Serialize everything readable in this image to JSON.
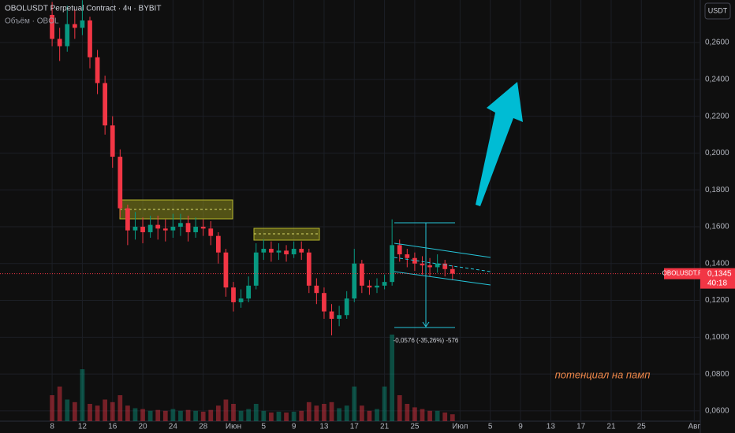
{
  "chart_data": {
    "type": "candlestick",
    "title": "OBOLUSDT Perpetual Contract · 4ч · BYBIT",
    "volume_label": "Объём · OBOL",
    "currency": "USDT",
    "measure_label": "-0,0576 (-35,26%) -576",
    "note": "потенциал на памп",
    "timer": "40:18",
    "last_price": {
      "value": 0.1345,
      "label": "0,1345"
    },
    "xlim": [
      -6.9,
      85.8
    ],
    "xticks": [
      {
        "value": 0,
        "label": "8"
      },
      {
        "value": 4,
        "label": "12"
      },
      {
        "value": 8,
        "label": "16"
      },
      {
        "value": 12,
        "label": "20"
      },
      {
        "value": 16,
        "label": "24"
      },
      {
        "value": 20,
        "label": "28"
      },
      {
        "value": 24,
        "label": "Июн"
      },
      {
        "value": 28,
        "label": "5"
      },
      {
        "value": 32,
        "label": "9"
      },
      {
        "value": 36,
        "label": "13"
      },
      {
        "value": 40,
        "label": "17"
      },
      {
        "value": 44,
        "label": "21"
      },
      {
        "value": 48,
        "label": "25"
      },
      {
        "value": 54,
        "label": "Июл"
      },
      {
        "value": 58,
        "label": "5"
      },
      {
        "value": 62,
        "label": "9"
      },
      {
        "value": 66,
        "label": "13"
      },
      {
        "value": 70,
        "label": "17"
      },
      {
        "value": 74,
        "label": "21"
      },
      {
        "value": 78,
        "label": "25"
      },
      {
        "value": 85,
        "label": "Авг"
      }
    ],
    "ylim": [
      0.0544,
      0.2831
    ],
    "yticks": [
      {
        "value": 0.06,
        "label": "0,0600"
      },
      {
        "value": 0.08,
        "label": "0,0800"
      },
      {
        "value": 0.1,
        "label": "0,1000"
      },
      {
        "value": 0.12,
        "label": "0,1200"
      },
      {
        "value": 0.14,
        "label": "0,1400"
      },
      {
        "value": 0.16,
        "label": "0,1600"
      },
      {
        "value": 0.18,
        "label": "0,1800"
      },
      {
        "value": 0.2,
        "label": "0,2000"
      },
      {
        "value": 0.22,
        "label": "0,2200"
      },
      {
        "value": 0.24,
        "label": "0,2400"
      },
      {
        "value": 0.26,
        "label": "0,2600"
      }
    ],
    "grid": true,
    "series": [
      {
        "name": "OBOLUSDT.P",
        "up_color": "#089981",
        "down_color": "#f23645",
        "x": [
          0,
          1,
          2,
          3,
          4,
          5,
          6,
          7,
          8,
          9,
          10,
          11,
          12,
          13,
          14,
          15,
          16,
          17,
          18,
          19,
          20,
          21,
          22,
          23,
          24,
          25,
          26,
          27,
          28,
          29,
          30,
          31,
          32,
          33,
          34,
          35,
          36,
          37,
          38,
          39,
          40,
          41,
          42,
          43,
          44,
          45,
          46,
          47,
          48,
          49,
          50,
          51,
          52,
          53
        ],
        "open": [
          0.275,
          0.262,
          0.258,
          0.27,
          0.268,
          0.272,
          0.252,
          0.238,
          0.215,
          0.198,
          0.17,
          0.158,
          0.16,
          0.157,
          0.161,
          0.159,
          0.158,
          0.16,
          0.162,
          0.157,
          0.16,
          0.159,
          0.155,
          0.146,
          0.127,
          0.119,
          0.121,
          0.128,
          0.146,
          0.148,
          0.146,
          0.147,
          0.145,
          0.148,
          0.146,
          0.128,
          0.124,
          0.114,
          0.11,
          0.112,
          0.121,
          0.14,
          0.128,
          0.127,
          0.128,
          0.13,
          0.15,
          0.145,
          0.143,
          0.14,
          0.139,
          0.138,
          0.14,
          0.137
        ],
        "high": [
          0.282,
          0.268,
          0.28,
          0.278,
          0.283,
          0.274,
          0.256,
          0.242,
          0.22,
          0.202,
          0.172,
          0.168,
          0.165,
          0.166,
          0.166,
          0.164,
          0.167,
          0.167,
          0.166,
          0.165,
          0.164,
          0.163,
          0.157,
          0.148,
          0.13,
          0.126,
          0.133,
          0.151,
          0.153,
          0.152,
          0.151,
          0.15,
          0.152,
          0.152,
          0.148,
          0.132,
          0.127,
          0.118,
          0.117,
          0.125,
          0.148,
          0.142,
          0.131,
          0.132,
          0.134,
          0.164,
          0.153,
          0.148,
          0.146,
          0.144,
          0.143,
          0.145,
          0.142,
          0.139
        ],
        "low": [
          0.258,
          0.25,
          0.255,
          0.262,
          0.264,
          0.246,
          0.232,
          0.21,
          0.192,
          0.165,
          0.15,
          0.153,
          0.151,
          0.154,
          0.153,
          0.152,
          0.154,
          0.155,
          0.152,
          0.154,
          0.155,
          0.15,
          0.14,
          0.122,
          0.114,
          0.116,
          0.119,
          0.126,
          0.142,
          0.141,
          0.142,
          0.141,
          0.143,
          0.142,
          0.124,
          0.118,
          0.11,
          0.101,
          0.106,
          0.11,
          0.119,
          0.124,
          0.123,
          0.124,
          0.126,
          0.128,
          0.141,
          0.138,
          0.136,
          0.134,
          0.133,
          0.135,
          0.133,
          0.131
        ],
        "close": [
          0.262,
          0.258,
          0.27,
          0.268,
          0.272,
          0.252,
          0.238,
          0.215,
          0.198,
          0.17,
          0.158,
          0.16,
          0.157,
          0.161,
          0.159,
          0.158,
          0.16,
          0.162,
          0.157,
          0.16,
          0.159,
          0.155,
          0.146,
          0.127,
          0.119,
          0.121,
          0.128,
          0.146,
          0.148,
          0.146,
          0.147,
          0.145,
          0.148,
          0.146,
          0.128,
          0.124,
          0.114,
          0.11,
          0.112,
          0.121,
          0.14,
          0.128,
          0.127,
          0.128,
          0.13,
          0.15,
          0.145,
          0.143,
          0.14,
          0.139,
          0.138,
          0.14,
          0.137,
          0.1345
        ],
        "volume": [
          30,
          40,
          25,
          22,
          60,
          20,
          18,
          25,
          22,
          30,
          18,
          15,
          14,
          12,
          13,
          12,
          14,
          12,
          13,
          12,
          11,
          13,
          18,
          25,
          20,
          12,
          14,
          20,
          12,
          10,
          11,
          10,
          11,
          12,
          22,
          18,
          20,
          22,
          15,
          18,
          40,
          18,
          12,
          14,
          40,
          100,
          30,
          20,
          16,
          14,
          12,
          12,
          10,
          8
        ]
      }
    ]
  }
}
